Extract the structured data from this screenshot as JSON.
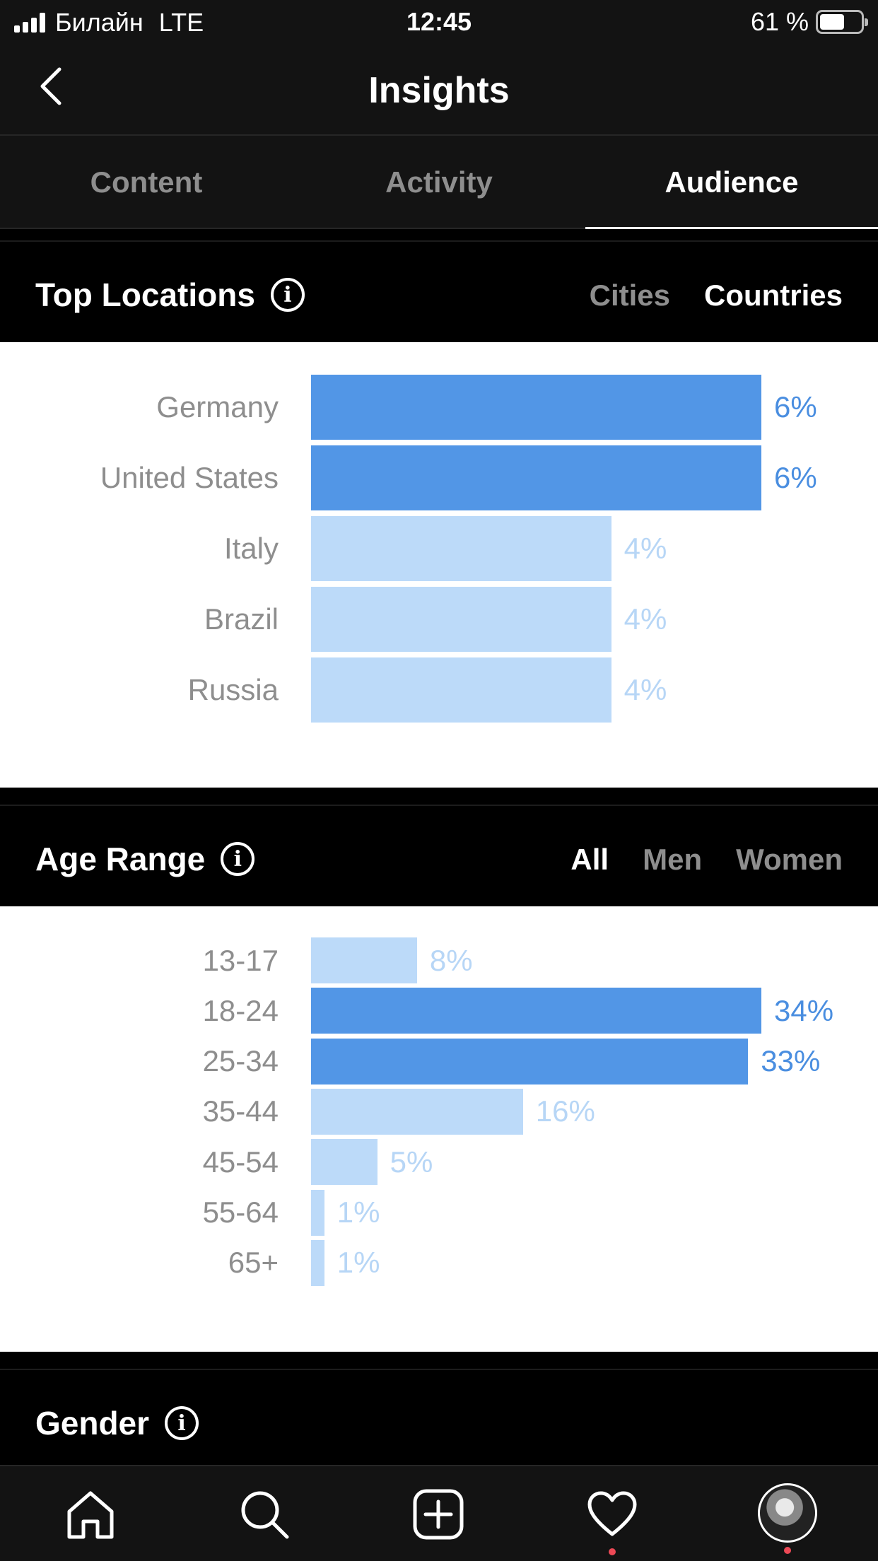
{
  "status_bar": {
    "carrier": "Билайн",
    "network": "LTE",
    "time": "12:45",
    "battery": "61 %",
    "battery_level": 0.61
  },
  "header": {
    "title": "Insights",
    "back_icon": "chevron-left-icon"
  },
  "tabs": [
    {
      "label": "Content",
      "active": false
    },
    {
      "label": "Activity",
      "active": false
    },
    {
      "label": "Audience",
      "active": true
    }
  ],
  "top_locations": {
    "title": "Top Locations",
    "options": [
      {
        "label": "Cities",
        "active": false
      },
      {
        "label": "Countries",
        "active": true
      }
    ],
    "rows": [
      {
        "label": "Germany",
        "value": "6%",
        "highlight": true
      },
      {
        "label": "United States",
        "value": "6%",
        "highlight": true
      },
      {
        "label": "Italy",
        "value": "4%",
        "highlight": false
      },
      {
        "label": "Brazil",
        "value": "4%",
        "highlight": false
      },
      {
        "label": "Russia",
        "value": "4%",
        "highlight": false
      }
    ]
  },
  "age_range": {
    "title": "Age Range",
    "options": [
      {
        "label": "All",
        "active": true
      },
      {
        "label": "Men",
        "active": false
      },
      {
        "label": "Women",
        "active": false
      }
    ],
    "rows": [
      {
        "label": "13-17",
        "value": "8%",
        "highlight": false
      },
      {
        "label": "18-24",
        "value": "34%",
        "highlight": true
      },
      {
        "label": "25-34",
        "value": "33%",
        "highlight": true
      },
      {
        "label": "35-44",
        "value": "16%",
        "highlight": false
      },
      {
        "label": "45-54",
        "value": "5%",
        "highlight": false
      },
      {
        "label": "55-64",
        "value": "1%",
        "highlight": false
      },
      {
        "label": "65+",
        "value": "1%",
        "highlight": false
      }
    ]
  },
  "gender": {
    "title": "Gender"
  },
  "chart_data": [
    {
      "type": "bar",
      "title": "Top Locations",
      "categories": [
        "Germany",
        "United States",
        "Italy",
        "Brazil",
        "Russia"
      ],
      "values": [
        6,
        6,
        4,
        4,
        4
      ],
      "unit": "%"
    },
    {
      "type": "bar",
      "title": "Age Range",
      "categories": [
        "13-17",
        "18-24",
        "25-34",
        "35-44",
        "45-54",
        "55-64",
        "65+"
      ],
      "values": [
        8,
        34,
        33,
        16,
        5,
        1,
        1
      ],
      "unit": "%"
    }
  ],
  "colors": {
    "bar_highlight": "#5296e6",
    "bar_light": "#bcdaf9",
    "notification_dot": "#ed4956"
  },
  "bottom_nav": {
    "items": [
      "home-icon",
      "search-icon",
      "add-post-icon",
      "activity-heart-icon",
      "profile-avatar"
    ]
  }
}
